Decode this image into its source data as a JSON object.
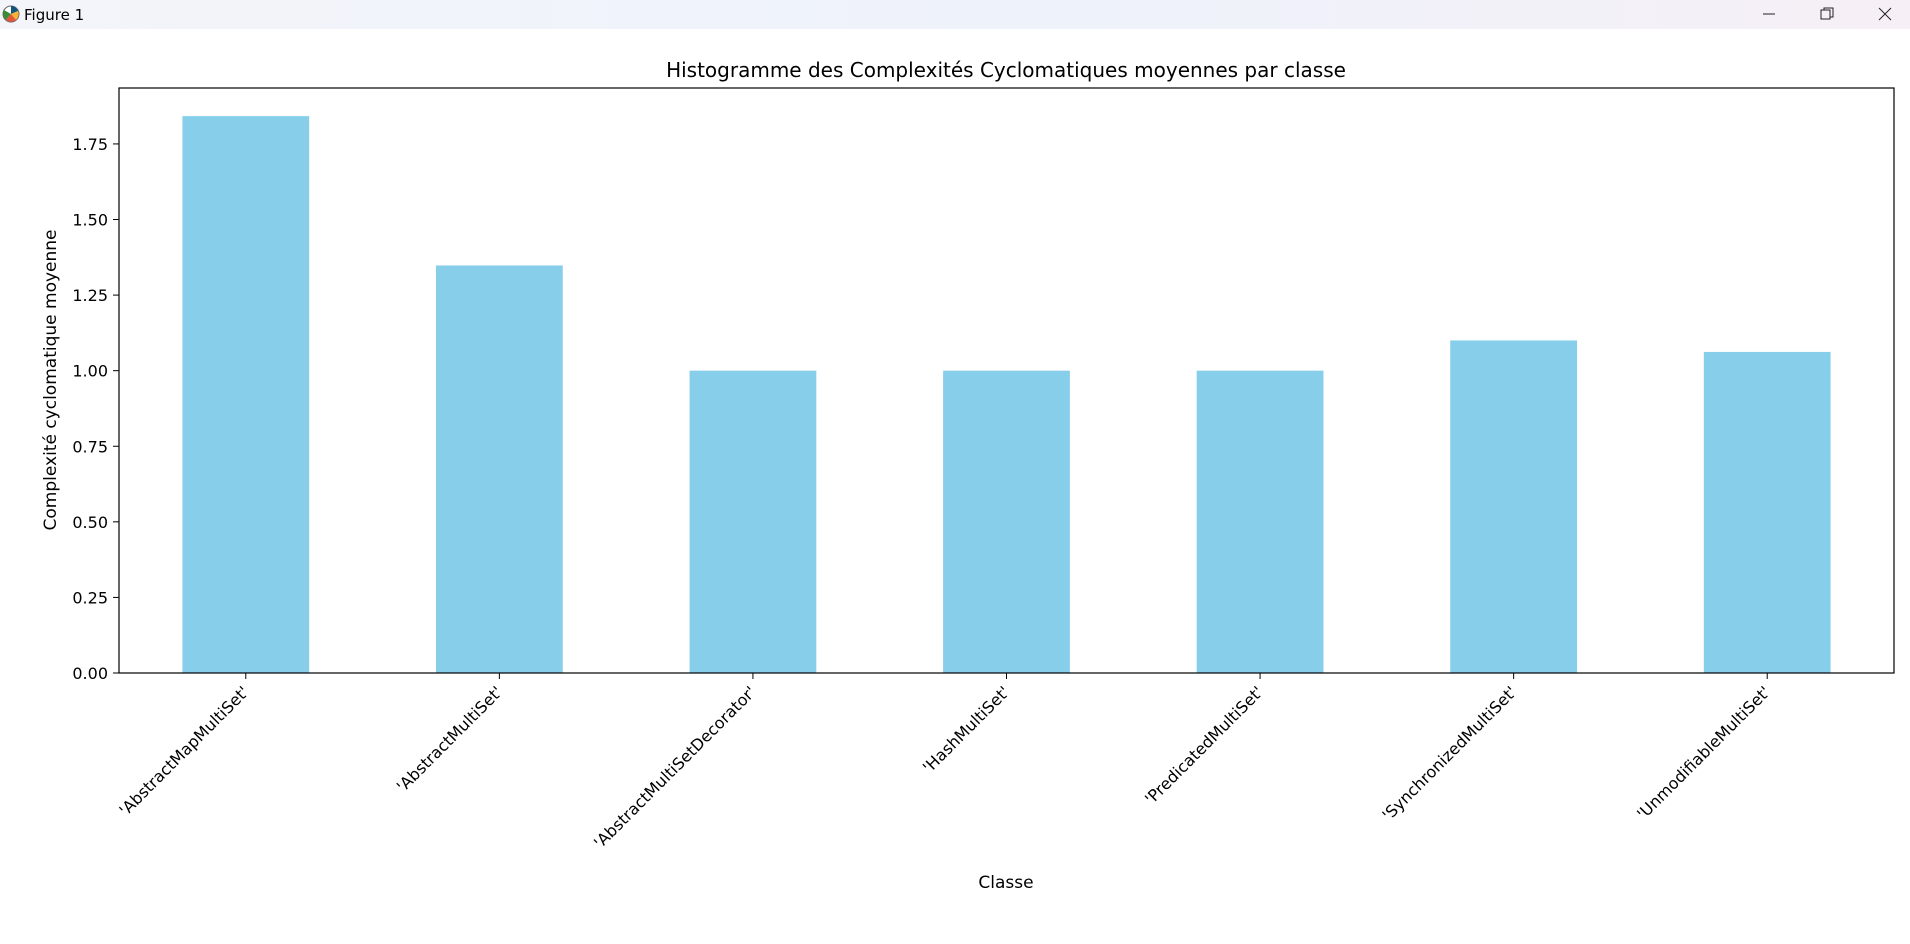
{
  "window": {
    "title": "Figure 1",
    "icon": "matplotlib-figure-icon",
    "controls": [
      "minimize-icon",
      "restore-icon",
      "close-icon"
    ]
  },
  "chart_data": {
    "type": "bar",
    "title": "Histogramme des Complexités Cyclomatiques moyennes par classe",
    "xlabel": "Classe",
    "ylabel": "Complexité cyclomatique moyenne",
    "categories": [
      "'AbstractMapMultiSet'",
      "'AbstractMultiSet'",
      "'AbstractMultiSetDecorator'",
      "'HashMultiSet'",
      "'PredicatedMultiSet'",
      "'SynchronizedMultiSet'",
      "'UnmodifiableMultiSet'"
    ],
    "values": [
      1.842,
      1.348,
      1.0,
      1.0,
      1.0,
      1.1,
      1.062
    ],
    "yticks": [
      "0.00",
      "0.25",
      "0.50",
      "0.75",
      "1.00",
      "1.25",
      "1.50",
      "1.75"
    ],
    "ylim": [
      0,
      1.935
    ],
    "bar_color": "#87ceeb",
    "grid": false,
    "legend": "none"
  }
}
